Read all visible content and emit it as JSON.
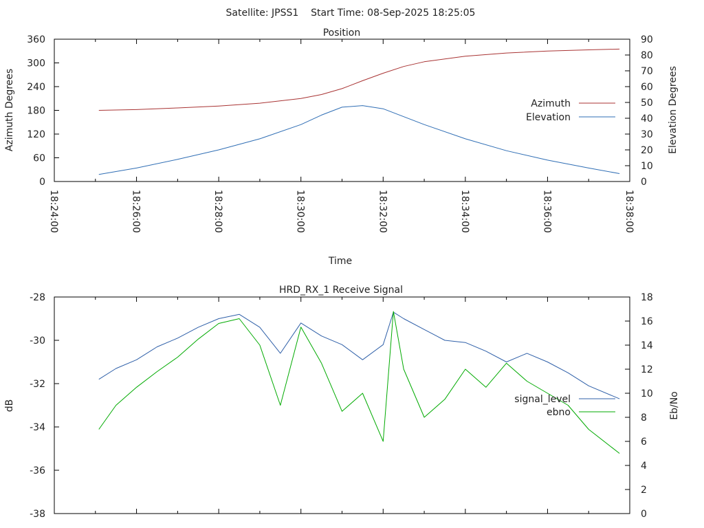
{
  "figure": {
    "title": "Satellite: JPSS1    Start Time: 08-Sep-2025 18:25:05"
  },
  "chart_data": [
    {
      "type": "line",
      "title": "Position",
      "xlabel": "Time",
      "ylabel": "Azimuth Degrees",
      "y2label": "Elevation Degrees",
      "x_tick_labels": [
        "18:24:00",
        "18:26:00",
        "18:28:00",
        "18:30:00",
        "18:32:00",
        "18:34:00",
        "18:36:00",
        "18:38:00"
      ],
      "xlim": [
        "18:24:00",
        "18:38:00"
      ],
      "ylim": [
        0,
        360
      ],
      "y_ticks": [
        0,
        60,
        120,
        180,
        240,
        300,
        360
      ],
      "y2lim": [
        0,
        90
      ],
      "y2_ticks": [
        0,
        10,
        20,
        30,
        40,
        50,
        60,
        70,
        80,
        90
      ],
      "legend_position": "right",
      "grid": false,
      "series": [
        {
          "name": "Azimuth",
          "axis": "left",
          "color": "#a83232",
          "x": [
            "18:25:05",
            "18:26:00",
            "18:27:00",
            "18:28:00",
            "18:29:00",
            "18:30:00",
            "18:30:30",
            "18:31:00",
            "18:31:30",
            "18:32:00",
            "18:32:30",
            "18:33:00",
            "18:34:00",
            "18:35:00",
            "18:36:00",
            "18:37:00",
            "18:37:45"
          ],
          "values": [
            180,
            182,
            186,
            191,
            198,
            210,
            220,
            235,
            255,
            274,
            291,
            303,
            317,
            325,
            330,
            333,
            335
          ]
        },
        {
          "name": "Elevation",
          "axis": "right",
          "color": "#2e6db4",
          "x": [
            "18:25:05",
            "18:26:00",
            "18:27:00",
            "18:28:00",
            "18:29:00",
            "18:30:00",
            "18:30:30",
            "18:31:00",
            "18:31:30",
            "18:32:00",
            "18:32:30",
            "18:33:00",
            "18:34:00",
            "18:35:00",
            "18:36:00",
            "18:37:00",
            "18:37:45"
          ],
          "values": [
            4.5,
            8.5,
            14,
            20,
            27,
            36,
            42,
            47,
            48,
            46,
            41,
            36,
            27,
            19.5,
            13.5,
            8.5,
            5
          ]
        }
      ]
    },
    {
      "type": "line",
      "title": "HRD_RX_1 Receive Signal",
      "xlabel": "",
      "ylabel": "dB",
      "y2label": "Eb/No",
      "xlim": [
        "18:24:00",
        "18:38:00"
      ],
      "ylim": [
        -38,
        -28
      ],
      "y_ticks": [
        -38,
        -36,
        -34,
        -32,
        -30,
        -28
      ],
      "y2lim": [
        0,
        18
      ],
      "y2_ticks": [
        0,
        2,
        4,
        6,
        8,
        10,
        12,
        14,
        16,
        18
      ],
      "legend_position": "right",
      "grid": false,
      "series": [
        {
          "name": "signal_level",
          "axis": "left",
          "color": "#2e5fa8",
          "x": [
            "18:25:05",
            "18:25:30",
            "18:26:00",
            "18:26:30",
            "18:27:00",
            "18:27:30",
            "18:28:00",
            "18:28:30",
            "18:29:00",
            "18:29:30",
            "18:30:00",
            "18:30:30",
            "18:31:00",
            "18:31:30",
            "18:32:00",
            "18:32:15",
            "18:32:30",
            "18:33:00",
            "18:33:30",
            "18:34:00",
            "18:34:30",
            "18:35:00",
            "18:35:30",
            "18:36:00",
            "18:36:30",
            "18:37:00",
            "18:37:45"
          ],
          "values": [
            -31.8,
            -31.3,
            -30.9,
            -30.3,
            -29.9,
            -29.4,
            -29.0,
            -28.8,
            -29.4,
            -30.6,
            -29.2,
            -29.8,
            -30.2,
            -30.9,
            -30.2,
            -28.7,
            -29.0,
            -29.5,
            -30.0,
            -30.1,
            -30.5,
            -31.0,
            -30.6,
            -31.0,
            -31.5,
            -32.1,
            -32.7
          ]
        },
        {
          "name": "ebno",
          "axis": "right",
          "color": "#00aa00",
          "x": [
            "18:25:05",
            "18:25:30",
            "18:26:00",
            "18:26:30",
            "18:27:00",
            "18:27:30",
            "18:28:00",
            "18:28:30",
            "18:29:00",
            "18:29:30",
            "18:30:00",
            "18:30:30",
            "18:31:00",
            "18:31:30",
            "18:32:00",
            "18:32:15",
            "18:32:30",
            "18:33:00",
            "18:33:30",
            "18:34:00",
            "18:34:30",
            "18:35:00",
            "18:35:30",
            "18:36:00",
            "18:36:30",
            "18:37:00",
            "18:37:45"
          ],
          "values": [
            7.0,
            9.0,
            10.5,
            11.8,
            13.0,
            14.5,
            15.8,
            16.2,
            14.0,
            9.0,
            15.5,
            12.5,
            8.5,
            10.0,
            6.0,
            16.8,
            12.0,
            8.0,
            9.5,
            12.0,
            10.5,
            12.5,
            11.0,
            10.0,
            9.0,
            7.0,
            5.0
          ]
        }
      ]
    }
  ]
}
